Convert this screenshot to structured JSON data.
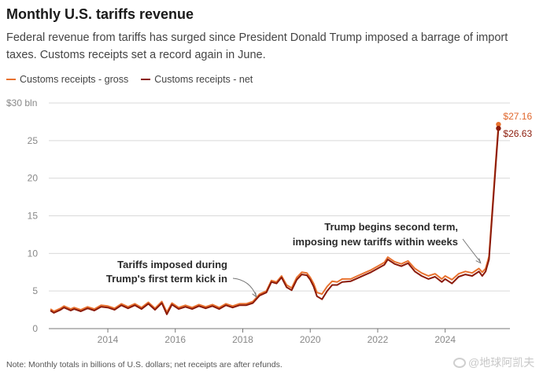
{
  "header": {
    "title": "Monthly U.S. tariffs revenue",
    "subtitle": "Federal revenue from tariffs has surged since President Donald Trump imposed a barrage of import taxes. Customs receipts set a record again in June."
  },
  "footer": {
    "note": "Note: Monthly totals in billions of U.S. dollars; net receipts are after refunds.",
    "watermark": "@地球阿凯夫"
  },
  "colors": {
    "gross": "#e8722f",
    "net": "#8b1a0a",
    "grid": "#d9d9d9",
    "axis": "#888888"
  },
  "chart_data": {
    "type": "line",
    "title": "Monthly U.S. tariffs revenue",
    "xlabel": "",
    "ylabel": "$ bln",
    "xlim": [
      2012.25,
      2025.92
    ],
    "ylim": [
      0,
      30
    ],
    "x_ticks": [
      2014,
      2016,
      2018,
      2020,
      2022,
      2024
    ],
    "x_tick_labels": [
      "2014",
      "2016",
      "2018",
      "2020",
      "2022",
      "2024"
    ],
    "y_ticks": [
      0,
      5,
      10,
      15,
      20,
      25,
      30
    ],
    "y_tick_labels": [
      "0",
      "5",
      "10",
      "15",
      "20",
      "25",
      "$30 bln"
    ],
    "legend": [
      "Customs receipts - gross",
      "Customs receipts - net"
    ],
    "legend_position": "top-left",
    "series": [
      {
        "name": "Customs receipts - gross",
        "points": [
          [
            2012.3,
            2.6
          ],
          [
            2012.4,
            2.3
          ],
          [
            2012.6,
            2.7
          ],
          [
            2012.7,
            3.0
          ],
          [
            2012.9,
            2.6
          ],
          [
            2013.0,
            2.8
          ],
          [
            2013.2,
            2.5
          ],
          [
            2013.4,
            2.9
          ],
          [
            2013.6,
            2.6
          ],
          [
            2013.8,
            3.1
          ],
          [
            2014.0,
            3.0
          ],
          [
            2014.2,
            2.7
          ],
          [
            2014.4,
            3.3
          ],
          [
            2014.6,
            2.9
          ],
          [
            2014.8,
            3.3
          ],
          [
            2015.0,
            2.8
          ],
          [
            2015.2,
            3.5
          ],
          [
            2015.4,
            2.7
          ],
          [
            2015.6,
            3.6
          ],
          [
            2015.75,
            2.2
          ],
          [
            2015.9,
            3.4
          ],
          [
            2016.1,
            2.8
          ],
          [
            2016.3,
            3.1
          ],
          [
            2016.5,
            2.8
          ],
          [
            2016.7,
            3.2
          ],
          [
            2016.9,
            2.9
          ],
          [
            2017.1,
            3.2
          ],
          [
            2017.3,
            2.8
          ],
          [
            2017.5,
            3.3
          ],
          [
            2017.7,
            3.0
          ],
          [
            2017.9,
            3.3
          ],
          [
            2018.1,
            3.3
          ],
          [
            2018.3,
            3.6
          ],
          [
            2018.5,
            4.6
          ],
          [
            2018.7,
            5.0
          ],
          [
            2018.85,
            6.4
          ],
          [
            2019.0,
            6.2
          ],
          [
            2019.15,
            7.0
          ],
          [
            2019.3,
            5.8
          ],
          [
            2019.45,
            5.4
          ],
          [
            2019.6,
            6.8
          ],
          [
            2019.75,
            7.5
          ],
          [
            2019.9,
            7.4
          ],
          [
            2020.0,
            6.8
          ],
          [
            2020.1,
            6.0
          ],
          [
            2020.2,
            4.8
          ],
          [
            2020.35,
            4.6
          ],
          [
            2020.5,
            5.6
          ],
          [
            2020.65,
            6.3
          ],
          [
            2020.8,
            6.2
          ],
          [
            2020.95,
            6.6
          ],
          [
            2021.2,
            6.6
          ],
          [
            2021.4,
            7.0
          ],
          [
            2021.6,
            7.4
          ],
          [
            2021.8,
            7.8
          ],
          [
            2022.0,
            8.3
          ],
          [
            2022.2,
            8.8
          ],
          [
            2022.3,
            9.5
          ],
          [
            2022.5,
            8.9
          ],
          [
            2022.7,
            8.6
          ],
          [
            2022.9,
            9.0
          ],
          [
            2023.1,
            8.0
          ],
          [
            2023.3,
            7.4
          ],
          [
            2023.5,
            7.0
          ],
          [
            2023.7,
            7.3
          ],
          [
            2023.9,
            6.6
          ],
          [
            2024.0,
            7.0
          ],
          [
            2024.2,
            6.5
          ],
          [
            2024.4,
            7.3
          ],
          [
            2024.6,
            7.6
          ],
          [
            2024.8,
            7.4
          ],
          [
            2025.0,
            8.0
          ],
          [
            2025.1,
            7.5
          ],
          [
            2025.2,
            8.0
          ],
          [
            2025.3,
            9.6
          ],
          [
            2025.4,
            16.0
          ],
          [
            2025.5,
            22.3
          ],
          [
            2025.58,
            27.16
          ]
        ],
        "end_label": "$27.16"
      },
      {
        "name": "Customs receipts - net",
        "points": [
          [
            2012.3,
            2.4
          ],
          [
            2012.4,
            2.1
          ],
          [
            2012.6,
            2.5
          ],
          [
            2012.7,
            2.8
          ],
          [
            2012.9,
            2.4
          ],
          [
            2013.0,
            2.6
          ],
          [
            2013.2,
            2.3
          ],
          [
            2013.4,
            2.7
          ],
          [
            2013.6,
            2.4
          ],
          [
            2013.8,
            2.9
          ],
          [
            2014.0,
            2.8
          ],
          [
            2014.2,
            2.5
          ],
          [
            2014.4,
            3.1
          ],
          [
            2014.6,
            2.7
          ],
          [
            2014.8,
            3.1
          ],
          [
            2015.0,
            2.6
          ],
          [
            2015.2,
            3.3
          ],
          [
            2015.4,
            2.5
          ],
          [
            2015.6,
            3.4
          ],
          [
            2015.75,
            1.9
          ],
          [
            2015.9,
            3.2
          ],
          [
            2016.1,
            2.6
          ],
          [
            2016.3,
            2.9
          ],
          [
            2016.5,
            2.6
          ],
          [
            2016.7,
            3.0
          ],
          [
            2016.9,
            2.7
          ],
          [
            2017.1,
            3.0
          ],
          [
            2017.3,
            2.6
          ],
          [
            2017.5,
            3.1
          ],
          [
            2017.7,
            2.8
          ],
          [
            2017.9,
            3.1
          ],
          [
            2018.1,
            3.1
          ],
          [
            2018.3,
            3.4
          ],
          [
            2018.5,
            4.4
          ],
          [
            2018.7,
            4.8
          ],
          [
            2018.85,
            6.2
          ],
          [
            2019.0,
            6.0
          ],
          [
            2019.15,
            6.8
          ],
          [
            2019.3,
            5.5
          ],
          [
            2019.45,
            5.1
          ],
          [
            2019.6,
            6.5
          ],
          [
            2019.75,
            7.2
          ],
          [
            2019.9,
            7.1
          ],
          [
            2020.0,
            6.5
          ],
          [
            2020.1,
            5.6
          ],
          [
            2020.2,
            4.3
          ],
          [
            2020.35,
            3.9
          ],
          [
            2020.5,
            5.0
          ],
          [
            2020.65,
            5.8
          ],
          [
            2020.8,
            5.8
          ],
          [
            2020.95,
            6.2
          ],
          [
            2021.2,
            6.3
          ],
          [
            2021.4,
            6.7
          ],
          [
            2021.6,
            7.1
          ],
          [
            2021.8,
            7.5
          ],
          [
            2022.0,
            8.0
          ],
          [
            2022.2,
            8.5
          ],
          [
            2022.3,
            9.2
          ],
          [
            2022.5,
            8.6
          ],
          [
            2022.7,
            8.3
          ],
          [
            2022.9,
            8.7
          ],
          [
            2023.1,
            7.6
          ],
          [
            2023.3,
            7.0
          ],
          [
            2023.5,
            6.6
          ],
          [
            2023.7,
            6.9
          ],
          [
            2023.9,
            6.2
          ],
          [
            2024.0,
            6.6
          ],
          [
            2024.2,
            6.0
          ],
          [
            2024.4,
            6.9
          ],
          [
            2024.6,
            7.2
          ],
          [
            2024.8,
            7.0
          ],
          [
            2025.0,
            7.6
          ],
          [
            2025.1,
            7.0
          ],
          [
            2025.2,
            7.6
          ],
          [
            2025.3,
            9.2
          ],
          [
            2025.4,
            15.5
          ],
          [
            2025.5,
            21.8
          ],
          [
            2025.58,
            26.63
          ]
        ],
        "end_label": "$26.63"
      }
    ],
    "annotations": [
      {
        "text_lines": [
          "Tariffs imposed during",
          "Trump's first term kick in"
        ],
        "point": [
          2018.4,
          3.9
        ]
      },
      {
        "text_lines": [
          "Trump begins second term,",
          "imposing new tariffs within weeks"
        ],
        "point": [
          2025.05,
          8.2
        ]
      }
    ]
  }
}
